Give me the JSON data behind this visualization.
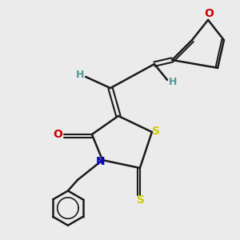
{
  "bg_color": "#ebebeb",
  "bond_color": "#1a1a1a",
  "S_color": "#cccc00",
  "N_color": "#0000cc",
  "O_color": "#cc0000",
  "H_color": "#4d9999",
  "figsize": [
    3.0,
    3.0
  ],
  "dpi": 100,
  "xlim": [
    0,
    10
  ],
  "ylim": [
    0,
    10
  ]
}
